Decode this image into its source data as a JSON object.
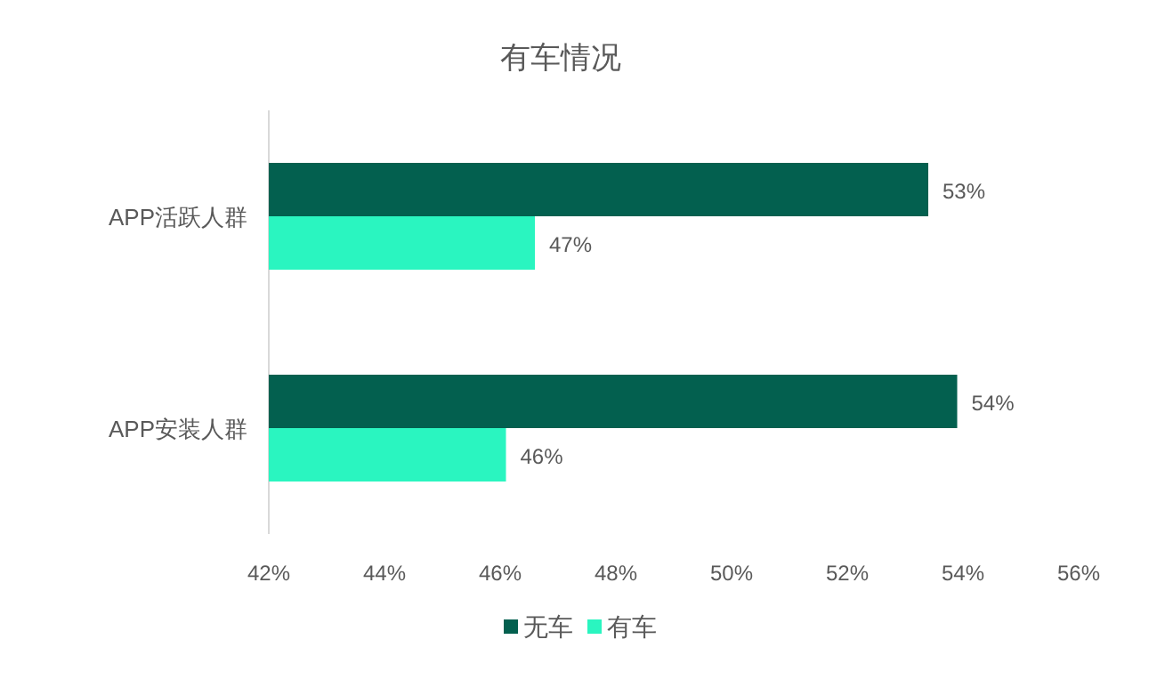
{
  "chart_data": {
    "type": "bar",
    "orientation": "horizontal",
    "title": "有车情况",
    "categories": [
      "APP活跃人群",
      "APP安装人群"
    ],
    "series": [
      {
        "name": "无车",
        "color": "#03604f",
        "values": [
          53.4,
          53.9
        ],
        "value_labels": [
          "53%",
          "54%"
        ]
      },
      {
        "name": "有车",
        "color": "#2af5c0",
        "values": [
          46.6,
          46.1
        ],
        "value_labels": [
          "47%",
          "46%"
        ]
      }
    ],
    "xlim": [
      42,
      56
    ],
    "xticks": [
      {
        "value": 42,
        "label": "42%"
      },
      {
        "value": 44,
        "label": "44%"
      },
      {
        "value": 46,
        "label": "46%"
      },
      {
        "value": 48,
        "label": "48%"
      },
      {
        "value": 50,
        "label": "50%"
      },
      {
        "value": 52,
        "label": "52%"
      },
      {
        "value": 54,
        "label": "54%"
      },
      {
        "value": 56,
        "label": "56%"
      }
    ],
    "grid": false,
    "legend": "bottom"
  }
}
